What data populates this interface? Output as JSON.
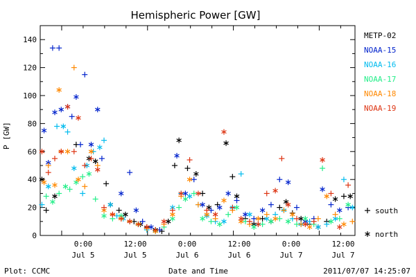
{
  "chart_data": {
    "type": "scatter",
    "title": "Hemispheric Power [GW]",
    "ylabel": "P [GW]",
    "xlabel": "Date and Time",
    "ylim": [
      0,
      150
    ],
    "y_ticks": [
      0,
      20,
      40,
      60,
      80,
      100,
      120,
      140
    ],
    "x_range_hours": [
      -15,
      29
    ],
    "x_ticks": [
      {
        "x": 0,
        "time": "0:00",
        "date": "Jul 5"
      },
      {
        "x": 12,
        "time": "12:00",
        "date": "Jul 5"
      },
      {
        "x": 24,
        "time": "0:00",
        "date": "Jul 6"
      },
      {
        "x": 36,
        "time": "12:00",
        "date": "Jul 6"
      },
      {
        "x": 48,
        "time": "0:00",
        "date": "Jul 7"
      },
      {
        "x": 60,
        "time": "12:00",
        "date": "Jul 7"
      }
    ],
    "grid": false,
    "legend": "right",
    "series": [
      {
        "name": "METP-02",
        "color": "#000000",
        "points": [
          [
            -9.5,
            40,
            "n"
          ],
          [
            -8.5,
            18,
            "s"
          ],
          [
            -6.5,
            28,
            "n"
          ],
          [
            -1.5,
            65,
            "s"
          ],
          [
            1.5,
            55,
            "n"
          ],
          [
            3,
            53,
            "n"
          ],
          [
            5.5,
            37,
            "s"
          ],
          [
            6.5,
            22,
            "n"
          ],
          [
            8.5,
            18,
            "s"
          ],
          [
            10,
            15,
            "n"
          ],
          [
            12,
            10,
            "s"
          ],
          [
            13.5,
            8,
            "n"
          ],
          [
            15,
            6,
            "s"
          ],
          [
            17,
            4,
            "n"
          ],
          [
            18.5,
            3,
            "s"
          ],
          [
            20,
            10,
            "n"
          ],
          [
            21.5,
            50,
            "s"
          ],
          [
            22.5,
            68,
            "n"
          ],
          [
            24.5,
            48,
            "s"
          ],
          [
            26.5,
            44,
            "n"
          ],
          [
            28,
            30,
            "s"
          ],
          [
            29.5,
            20,
            "n"
          ],
          [
            31.5,
            22,
            "s"
          ],
          [
            33.5,
            66,
            "n"
          ],
          [
            35,
            42,
            "s"
          ],
          [
            36,
            28,
            "n"
          ],
          [
            38,
            12,
            "s"
          ],
          [
            40,
            8,
            "n"
          ],
          [
            42,
            12,
            "s"
          ],
          [
            44,
            10,
            "n"
          ],
          [
            46,
            20,
            "s"
          ],
          [
            47.5,
            24,
            "n"
          ],
          [
            49,
            16,
            "s"
          ],
          [
            51,
            12,
            "n"
          ],
          [
            53,
            8,
            "s"
          ],
          [
            55,
            6,
            "n"
          ],
          [
            57,
            10,
            "s"
          ],
          [
            59,
            26,
            "n"
          ],
          [
            61,
            28,
            "s"
          ],
          [
            62.5,
            28,
            "n"
          ],
          [
            64,
            12,
            "s"
          ]
        ]
      },
      {
        "name": "NOAA-15",
        "color": "#0022cc",
        "points": [
          [
            -10,
            43,
            "n"
          ],
          [
            -9,
            75,
            "n"
          ],
          [
            -8,
            52,
            "n"
          ],
          [
            -7,
            134,
            "s"
          ],
          [
            -6.5,
            88,
            "n"
          ],
          [
            -5.5,
            134,
            "s"
          ],
          [
            -5,
            90,
            "n"
          ],
          [
            -3.5,
            92,
            "n"
          ],
          [
            -2.5,
            85,
            "s"
          ],
          [
            -1.5,
            99,
            "n"
          ],
          [
            -0.5,
            65,
            "s"
          ],
          [
            0.5,
            115,
            "s"
          ],
          [
            2,
            65,
            "n"
          ],
          [
            3.5,
            90,
            "n"
          ],
          [
            4.5,
            55,
            "s"
          ],
          [
            9,
            30,
            "n"
          ],
          [
            11,
            45,
            "s"
          ],
          [
            12.5,
            18,
            "n"
          ],
          [
            14,
            10,
            "s"
          ],
          [
            16,
            6,
            "n"
          ],
          [
            18,
            4,
            "s"
          ],
          [
            22,
            57,
            "n"
          ],
          [
            24,
            30,
            "n"
          ],
          [
            26,
            40,
            "s"
          ],
          [
            28,
            22,
            "n"
          ],
          [
            30,
            18,
            "s"
          ],
          [
            32,
            20,
            "n"
          ],
          [
            34,
            30,
            "n"
          ],
          [
            36,
            25,
            "s"
          ],
          [
            38,
            15,
            "n"
          ],
          [
            40,
            12,
            "s"
          ],
          [
            42,
            18,
            "n"
          ],
          [
            44,
            22,
            "s"
          ],
          [
            46,
            40,
            "s"
          ],
          [
            48,
            38,
            "n"
          ],
          [
            50,
            20,
            "s"
          ],
          [
            52,
            10,
            "n"
          ],
          [
            54,
            12,
            "s"
          ],
          [
            56,
            33,
            "n"
          ],
          [
            58,
            22,
            "s"
          ],
          [
            60,
            18,
            "n"
          ],
          [
            62,
            20,
            "s"
          ]
        ]
      },
      {
        "name": "NOAA-16",
        "color": "#00bbee",
        "points": [
          [
            -9.5,
            22,
            "s"
          ],
          [
            -8,
            35,
            "n"
          ],
          [
            -6,
            78,
            "s"
          ],
          [
            -4.5,
            78,
            "n"
          ],
          [
            -3.5,
            74,
            "s"
          ],
          [
            -2,
            48,
            "n"
          ],
          [
            0,
            30,
            "s"
          ],
          [
            1,
            50,
            "n"
          ],
          [
            2.5,
            60,
            "s"
          ],
          [
            4,
            63,
            "n"
          ],
          [
            5,
            68,
            "s"
          ],
          [
            6.5,
            22,
            "n"
          ],
          [
            8,
            14,
            "s"
          ],
          [
            9.5,
            12,
            "n"
          ],
          [
            11,
            10,
            "s"
          ],
          [
            13,
            8,
            "n"
          ],
          [
            15,
            4,
            "s"
          ],
          [
            21,
            20,
            "n"
          ],
          [
            23,
            30,
            "s"
          ],
          [
            25,
            28,
            "n"
          ],
          [
            27,
            22,
            "s"
          ],
          [
            29,
            14,
            "n"
          ],
          [
            31,
            10,
            "s"
          ],
          [
            33,
            10,
            "n"
          ],
          [
            35,
            20,
            "n"
          ],
          [
            37,
            44,
            "s"
          ],
          [
            39,
            15,
            "n"
          ],
          [
            41,
            8,
            "s"
          ],
          [
            43,
            12,
            "n"
          ],
          [
            45,
            15,
            "s"
          ],
          [
            47,
            18,
            "n"
          ],
          [
            49,
            12,
            "s"
          ],
          [
            51,
            8,
            "n"
          ],
          [
            53,
            10,
            "s"
          ],
          [
            55,
            6,
            "n"
          ],
          [
            57,
            8,
            "s"
          ],
          [
            59,
            12,
            "n"
          ],
          [
            61,
            40,
            "s"
          ],
          [
            63,
            20,
            "n"
          ]
        ]
      },
      {
        "name": "NOAA-17",
        "color": "#22ee88",
        "points": [
          [
            -10,
            28,
            "n"
          ],
          [
            -8.5,
            28,
            "s"
          ],
          [
            -7,
            24,
            "n"
          ],
          [
            -5.5,
            30,
            "s"
          ],
          [
            -4,
            35,
            "n"
          ],
          [
            -3,
            33,
            "s"
          ],
          [
            -1.5,
            38,
            "n"
          ],
          [
            0,
            42,
            "s"
          ],
          [
            1.5,
            44,
            "n"
          ],
          [
            3,
            26,
            "s"
          ],
          [
            5,
            14,
            "n"
          ],
          [
            7,
            12,
            "s"
          ],
          [
            9,
            14,
            "n"
          ],
          [
            11,
            10,
            "s"
          ],
          [
            13,
            8,
            "n"
          ],
          [
            15,
            5,
            "s"
          ],
          [
            17,
            3,
            "n"
          ],
          [
            19,
            6,
            "s"
          ],
          [
            21,
            12,
            "n"
          ],
          [
            22.5,
            20,
            "s"
          ],
          [
            24,
            26,
            "n"
          ],
          [
            26,
            30,
            "s"
          ],
          [
            28,
            12,
            "n"
          ],
          [
            30,
            10,
            "s"
          ],
          [
            32,
            8,
            "n"
          ],
          [
            34,
            15,
            "s"
          ],
          [
            36,
            20,
            "n"
          ],
          [
            38,
            10,
            "s"
          ],
          [
            40,
            6,
            "n"
          ],
          [
            42,
            8,
            "s"
          ],
          [
            44,
            10,
            "n"
          ],
          [
            46,
            12,
            "s"
          ],
          [
            48,
            10,
            "n"
          ],
          [
            50,
            8,
            "s"
          ],
          [
            52,
            12,
            "n"
          ],
          [
            54,
            8,
            "s"
          ],
          [
            56,
            48,
            "s"
          ],
          [
            58,
            10,
            "n"
          ],
          [
            60,
            12,
            "s"
          ],
          [
            62,
            22,
            "n"
          ],
          [
            64,
            26,
            "s"
          ]
        ]
      },
      {
        "name": "NOAA-18",
        "color": "#ff8800",
        "points": [
          [
            -10,
            28,
            "s"
          ],
          [
            -9,
            38,
            "n"
          ],
          [
            -8,
            50,
            "s"
          ],
          [
            -6.5,
            36,
            "n"
          ],
          [
            -5.5,
            104,
            "n"
          ],
          [
            -5,
            60,
            "s"
          ],
          [
            -3.5,
            60,
            "n"
          ],
          [
            -2,
            120,
            "s"
          ],
          [
            -1,
            40,
            "n"
          ],
          [
            0.5,
            35,
            "s"
          ],
          [
            2,
            60,
            "n"
          ],
          [
            3.5,
            50,
            "s"
          ],
          [
            5,
            18,
            "n"
          ],
          [
            7,
            15,
            "s"
          ],
          [
            9,
            12,
            "n"
          ],
          [
            11,
            10,
            "s"
          ],
          [
            13,
            8,
            "n"
          ],
          [
            15,
            5,
            "s"
          ],
          [
            17,
            3,
            "n"
          ],
          [
            19,
            8,
            "s"
          ],
          [
            21,
            15,
            "n"
          ],
          [
            23,
            28,
            "s"
          ],
          [
            25,
            40,
            "n"
          ],
          [
            27,
            22,
            "s"
          ],
          [
            29,
            15,
            "n"
          ],
          [
            31,
            12,
            "s"
          ],
          [
            33,
            25,
            "n"
          ],
          [
            35,
            18,
            "s"
          ],
          [
            37,
            10,
            "n"
          ],
          [
            39,
            8,
            "s"
          ],
          [
            41,
            12,
            "n"
          ],
          [
            43,
            15,
            "s"
          ],
          [
            45,
            12,
            "n"
          ],
          [
            47,
            18,
            "s"
          ],
          [
            49,
            15,
            "n"
          ],
          [
            51,
            8,
            "s"
          ],
          [
            53,
            6,
            "n"
          ],
          [
            55,
            12,
            "s"
          ],
          [
            57,
            28,
            "n"
          ],
          [
            59,
            15,
            "s"
          ],
          [
            61,
            8,
            "n"
          ],
          [
            63,
            10,
            "s"
          ]
        ]
      },
      {
        "name": "NOAA-19",
        "color": "#dd3311",
        "points": [
          [
            -9.5,
            60,
            "n"
          ],
          [
            -8,
            45,
            "s"
          ],
          [
            -6.5,
            55,
            "s"
          ],
          [
            -5,
            60,
            "n"
          ],
          [
            -3.5,
            92,
            "n"
          ],
          [
            -2,
            60,
            "s"
          ],
          [
            -1,
            84,
            "n"
          ],
          [
            0.5,
            50,
            "s"
          ],
          [
            2,
            55,
            "s"
          ],
          [
            3.5,
            47,
            "n"
          ],
          [
            5,
            20,
            "s"
          ],
          [
            7,
            15,
            "n"
          ],
          [
            9,
            12,
            "s"
          ],
          [
            11,
            10,
            "n"
          ],
          [
            13,
            8,
            "s"
          ],
          [
            15,
            6,
            "n"
          ],
          [
            17,
            4,
            "s"
          ],
          [
            19,
            10,
            "n"
          ],
          [
            21,
            18,
            "s"
          ],
          [
            23,
            30,
            "n"
          ],
          [
            25,
            54,
            "s"
          ],
          [
            27,
            30,
            "n"
          ],
          [
            29,
            18,
            "s"
          ],
          [
            31,
            15,
            "n"
          ],
          [
            33,
            74,
            "n"
          ],
          [
            35,
            20,
            "s"
          ],
          [
            37,
            12,
            "n"
          ],
          [
            39,
            10,
            "s"
          ],
          [
            41,
            8,
            "n"
          ],
          [
            43,
            30,
            "s"
          ],
          [
            45,
            32,
            "n"
          ],
          [
            46.5,
            55,
            "s"
          ],
          [
            48,
            22,
            "n"
          ],
          [
            50,
            12,
            "s"
          ],
          [
            52,
            8,
            "n"
          ],
          [
            54,
            10,
            "s"
          ],
          [
            56,
            54,
            "n"
          ],
          [
            58,
            30,
            "s"
          ],
          [
            60,
            6,
            "n"
          ],
          [
            62,
            36,
            "s"
          ],
          [
            64,
            20,
            "n"
          ]
        ]
      }
    ],
    "legend_symbols": {
      "south_symbol": "+",
      "south_label": "south",
      "north_symbol": "*",
      "north_label": "north"
    }
  },
  "footer": {
    "plot_label": "Plot: CCMC",
    "timestamp": "2011/07/07 14:25:07"
  }
}
